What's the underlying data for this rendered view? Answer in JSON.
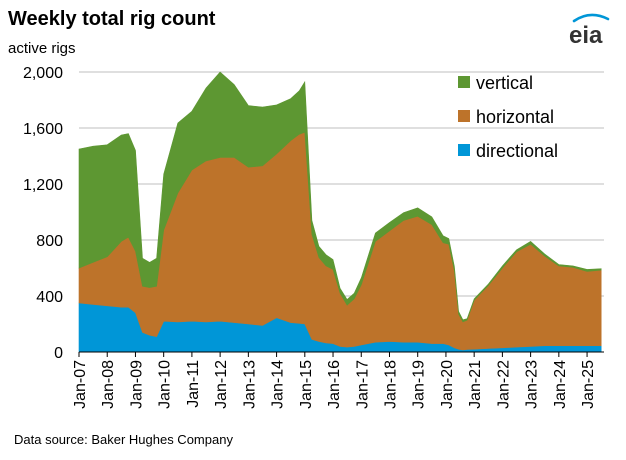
{
  "header": {
    "title": "Weekly total rig count",
    "logo_text": "eia"
  },
  "footer": {
    "source": "Data source: Baker Hughes Company"
  },
  "colors": {
    "vertical": "#5d9732",
    "horizontal": "#bd732a",
    "directional": "#0096d7",
    "grid": "#bfbfbf"
  },
  "chart_data": {
    "type": "area",
    "stacked": true,
    "title": "Weekly total rig count",
    "ylabel": "active rigs",
    "xlabel": "",
    "ylim": [
      0,
      2000
    ],
    "yticks": [
      "0",
      "400",
      "800",
      "1,200",
      "1,600",
      "2,000"
    ],
    "ytick_values": [
      0,
      400,
      800,
      1200,
      1600,
      2000
    ],
    "x_tick_labels": [
      "Jan-07",
      "Jan-08",
      "Jan-09",
      "Jan-10",
      "Jan-11",
      "Jan-12",
      "Jan-13",
      "Jan-14",
      "Jan-15",
      "Jan-16",
      "Jan-17",
      "Jan-18",
      "Jan-19",
      "Jan-20",
      "Jan-21",
      "Jan-22",
      "Jan-23",
      "Jan-24",
      "Jan-25"
    ],
    "x_tick_values": [
      2007,
      2008,
      2009,
      2010,
      2011,
      2012,
      2013,
      2014,
      2015,
      2016,
      2017,
      2018,
      2019,
      2020,
      2021,
      2022,
      2023,
      2024,
      2025
    ],
    "xlim": [
      2007,
      2025.6
    ],
    "grid": true,
    "legend_position": "top-right",
    "x": [
      2007.0,
      2007.5,
      2008.0,
      2008.5,
      2008.75,
      2009.0,
      2009.25,
      2009.5,
      2009.75,
      2010.0,
      2010.5,
      2011.0,
      2011.5,
      2012.0,
      2012.5,
      2013.0,
      2013.5,
      2014.0,
      2014.5,
      2014.8,
      2015.0,
      2015.25,
      2015.5,
      2015.75,
      2016.0,
      2016.25,
      2016.5,
      2016.75,
      2017.0,
      2017.5,
      2018.0,
      2018.5,
      2019.0,
      2019.5,
      2019.9,
      2020.1,
      2020.3,
      2020.45,
      2020.6,
      2020.75,
      2021.0,
      2021.5,
      2022.0,
      2022.5,
      2023.0,
      2023.5,
      2024.0,
      2024.5,
      2025.0,
      2025.5
    ],
    "series": [
      {
        "name": "directional",
        "values": [
          350,
          340,
          330,
          320,
          320,
          280,
          140,
          120,
          110,
          220,
          215,
          220,
          215,
          220,
          210,
          200,
          190,
          245,
          210,
          205,
          200,
          90,
          75,
          65,
          60,
          40,
          35,
          40,
          50,
          70,
          75,
          70,
          70,
          60,
          60,
          50,
          30,
          20,
          15,
          18,
          20,
          25,
          30,
          35,
          40,
          45,
          45,
          45,
          45,
          45
        ]
      },
      {
        "name": "horizontal",
        "values": [
          250,
          300,
          350,
          470,
          500,
          440,
          330,
          340,
          360,
          650,
          920,
          1080,
          1150,
          1170,
          1180,
          1120,
          1140,
          1170,
          1300,
          1350,
          1370,
          750,
          600,
          550,
          530,
          380,
          300,
          340,
          430,
          720,
          790,
          870,
          900,
          850,
          720,
          720,
          550,
          250,
          200,
          210,
          350,
          450,
          570,
          680,
          730,
          640,
          570,
          560,
          530,
          540
        ]
      },
      {
        "name": "vertical",
        "values": [
          850,
          830,
          800,
          760,
          740,
          720,
          200,
          180,
          200,
          400,
          500,
          420,
          520,
          610,
          520,
          440,
          420,
          350,
          300,
          310,
          360,
          100,
          80,
          80,
          70,
          35,
          40,
          40,
          50,
          60,
          60,
          55,
          60,
          55,
          50,
          40,
          30,
          20,
          15,
          10,
          10,
          10,
          15,
          15,
          20,
          15,
          10,
          10,
          15,
          10
        ]
      }
    ]
  }
}
